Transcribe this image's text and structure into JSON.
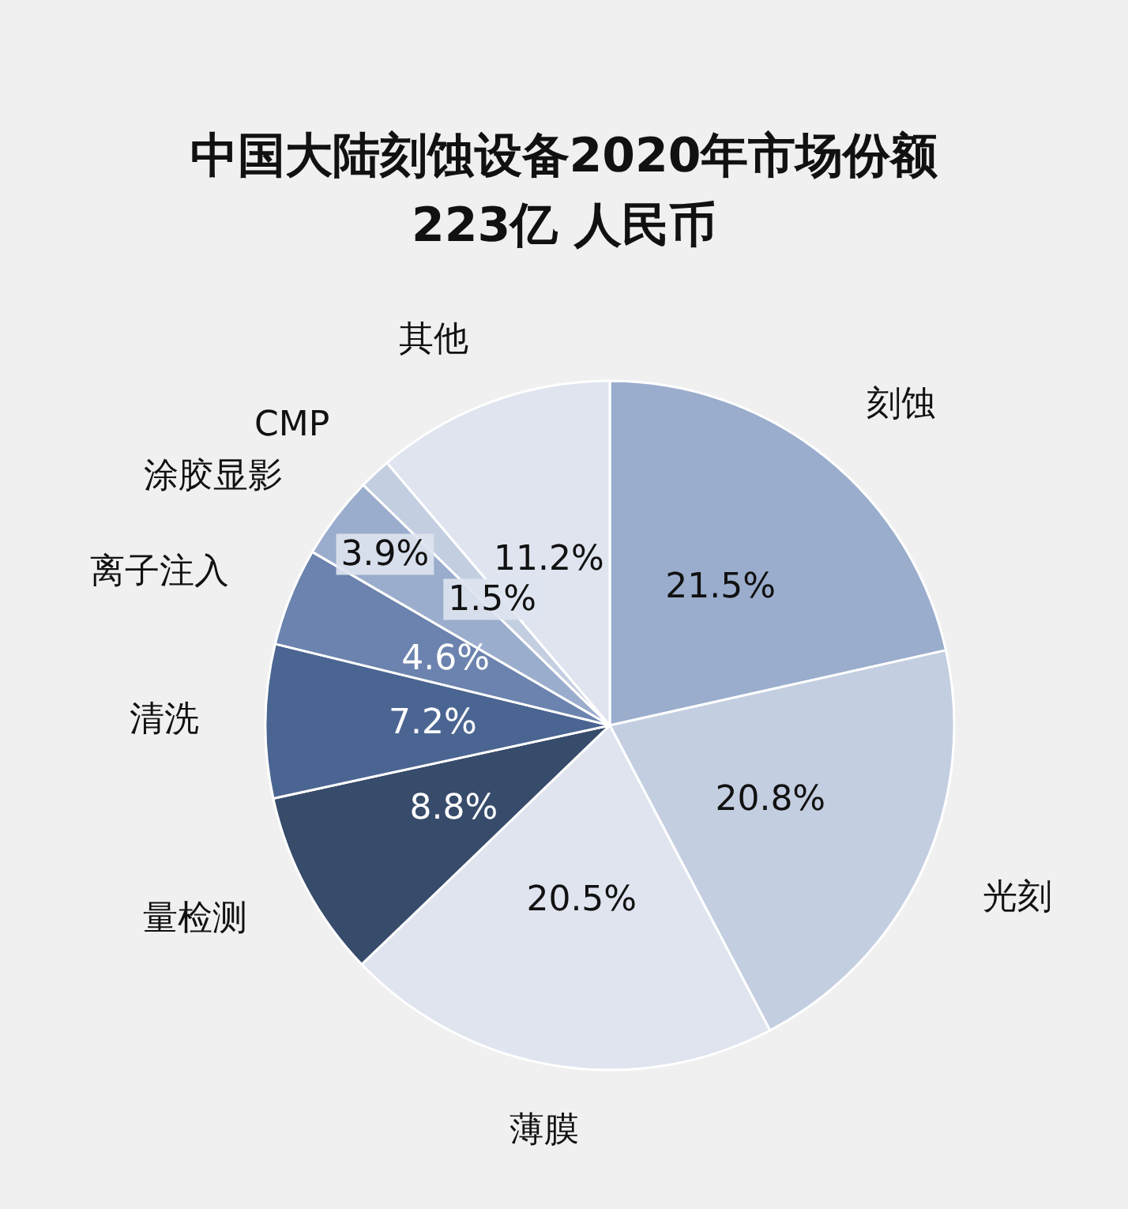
{
  "chart_data": {
    "type": "pie",
    "title": "中国大陆刻蚀设备2020年市场份额\n223亿 人民币",
    "categories": [
      "刻蚀",
      "光刻",
      "薄膜",
      "量检测",
      "清洗",
      "离子注入",
      "涂胶显影",
      "CMP",
      "其他"
    ],
    "values": [
      21.5,
      20.8,
      20.5,
      8.8,
      7.2,
      4.6,
      3.9,
      1.5,
      11.2
    ],
    "value_labels": [
      "21.5%",
      "20.8%",
      "20.5%",
      "8.8%",
      "7.2%",
      "4.6%",
      "3.9%",
      "1.5%",
      "11.2%"
    ],
    "colors": [
      "#9aadcd",
      "#c4cee1",
      "#dfe4ef",
      "#374b6b",
      "#4b6592",
      "#6b83ae",
      "#9aadcd",
      "#c4cee1",
      "#dfe4ef"
    ],
    "legend": false
  }
}
